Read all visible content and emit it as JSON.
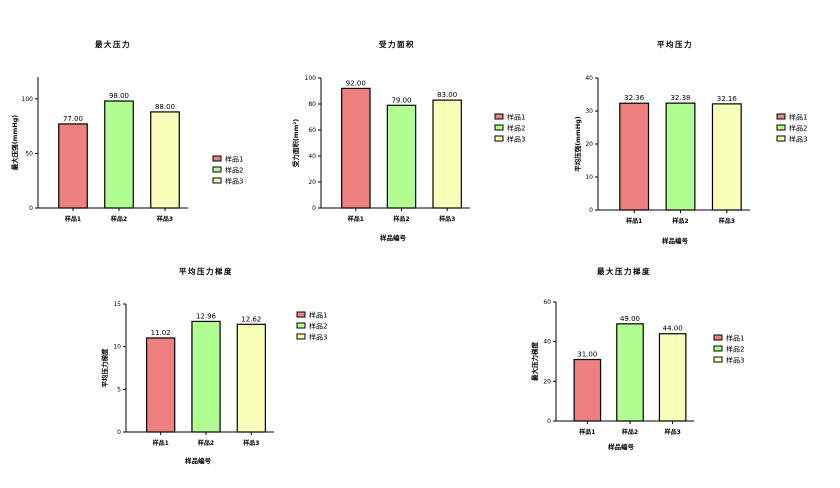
{
  "legend_colors": [
    "#f08080",
    "#b0ff90",
    "#f8ffb8"
  ],
  "chart_data": [
    {
      "type": "bar",
      "title": "最大压力",
      "xlabel": "",
      "ylabel": "最大压强(mmHg)",
      "categories": [
        "样品1",
        "样品2",
        "样品3"
      ],
      "values": [
        77.0,
        98.0,
        88.0
      ],
      "value_labels": [
        "77.00",
        "98.00",
        "88.00"
      ],
      "ylim": [
        0,
        120
      ],
      "yticks": [
        0,
        50,
        100
      ],
      "legend": [
        "样品1",
        "样品2",
        "样品3"
      ],
      "legend_position": "right",
      "grid": false
    },
    {
      "type": "bar",
      "title": "受力面积",
      "xlabel": "样品编号",
      "ylabel": "受力面积(mm²)",
      "categories": [
        "样品1",
        "样品2",
        "样品3"
      ],
      "values": [
        92.0,
        79.0,
        83.0
      ],
      "value_labels": [
        "92.00",
        "79.00",
        "83.00"
      ],
      "ylim": [
        0,
        100
      ],
      "yticks": [
        0,
        20,
        40,
        60,
        80,
        100
      ],
      "legend": [
        "样品1",
        "样品2",
        "样品3"
      ],
      "legend_position": "right",
      "grid": false
    },
    {
      "type": "bar",
      "title": "平均压力",
      "xlabel": "样品编号",
      "ylabel": "平均压强(mmHg)",
      "categories": [
        "样品1",
        "样品2",
        "样品3"
      ],
      "values": [
        32.36,
        32.38,
        32.16
      ],
      "value_labels": [
        "32.36",
        "32.38",
        "32.16"
      ],
      "ylim": [
        0,
        40
      ],
      "yticks": [
        0,
        10,
        20,
        30,
        40
      ],
      "legend": [
        "样品1",
        "样品2",
        "样品3"
      ],
      "legend_position": "right",
      "grid": false
    },
    {
      "type": "bar",
      "title": "平均压力梯度",
      "xlabel": "样品编号",
      "ylabel": "平均压力梯度",
      "categories": [
        "样品1",
        "样品2",
        "样品3"
      ],
      "values": [
        11.02,
        12.96,
        12.62
      ],
      "value_labels": [
        "11.02",
        "12.96",
        "12.62"
      ],
      "ylim": [
        0,
        15
      ],
      "yticks": [
        0,
        5,
        10,
        15
      ],
      "legend": [
        "样品1",
        "样品2",
        "样品3"
      ],
      "legend_position": "right",
      "grid": false
    },
    {
      "type": "bar",
      "title": "最大压力梯度",
      "xlabel": "样品编号",
      "ylabel": "最大压力梯度",
      "categories": [
        "样品1",
        "样品2",
        "样品3"
      ],
      "values": [
        31.0,
        49.0,
        44.0
      ],
      "value_labels": [
        "31.00",
        "49.00",
        "44.00"
      ],
      "ylim": [
        0,
        60
      ],
      "yticks": [
        0,
        20,
        40,
        60
      ],
      "legend": [
        "样品1",
        "样品2",
        "样品3"
      ],
      "legend_position": "right",
      "grid": false
    }
  ]
}
